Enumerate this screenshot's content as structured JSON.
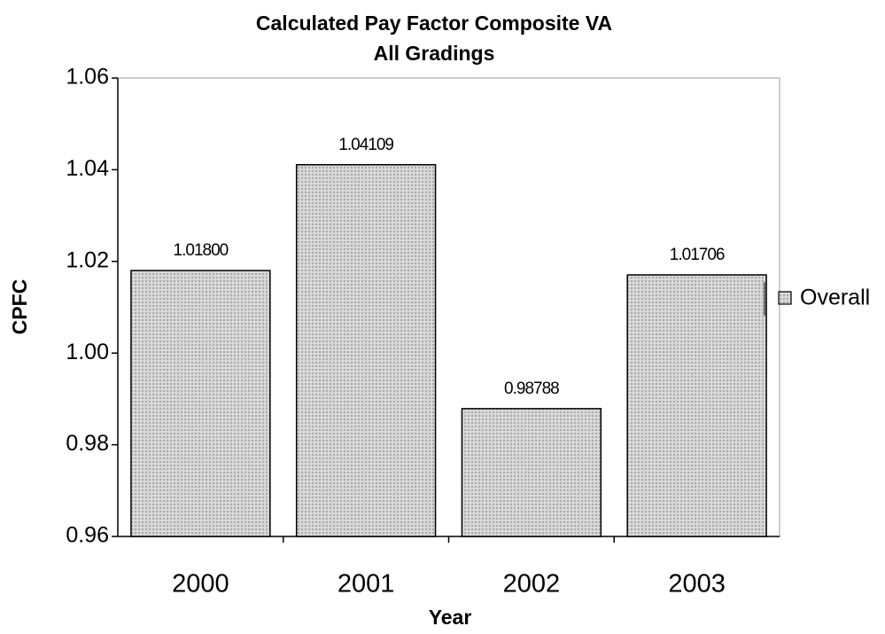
{
  "chart_data": {
    "type": "bar",
    "title": "Calculated Pay Factor Composite VA",
    "subtitle": "All Gradings",
    "x_label": "Year",
    "y_label": "CPFC",
    "categories": [
      "2000",
      "2001",
      "2002",
      "2003"
    ],
    "series": [
      {
        "name": "Overall",
        "color": "#c8c8c8",
        "values": [
          1.018,
          1.04109,
          0.98788,
          1.01706
        ],
        "value_labels": [
          "1.01800",
          "1.04109",
          "0.98788",
          "1.01706"
        ]
      }
    ],
    "ylim": [
      0.96,
      1.06
    ],
    "yticks": [
      0.96,
      0.98,
      {
        "value": 1,
        "label": "1.00"
      },
      1.02,
      1.04,
      1.06
    ],
    "grid": false,
    "legend": "right"
  }
}
